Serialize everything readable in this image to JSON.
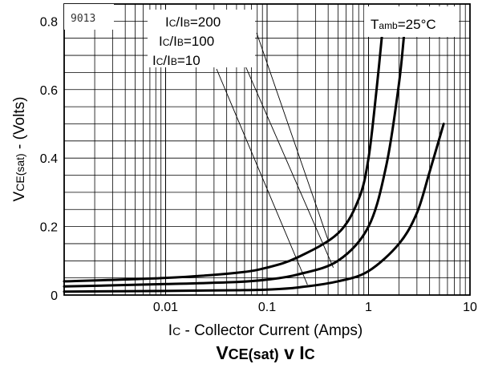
{
  "chart_data": {
    "type": "line",
    "title": "VCE(sat) v IC",
    "xlabel": "IC - Collector Current (Amps)",
    "ylabel": "VCE(sat) - (Volts)",
    "x_scale": "log",
    "xlim": [
      0.001,
      10
    ],
    "ylim": [
      0,
      0.85
    ],
    "x_ticks": [
      "0.01",
      "0.1",
      "1",
      "10"
    ],
    "y_ticks": [
      "0",
      "0.2",
      "0.4",
      "0.6",
      "0.8"
    ],
    "grid": true,
    "device_label": "9013",
    "condition_label": "Tamb=25°C",
    "series": [
      {
        "name": "IC/IB=10",
        "x": [
          0.001,
          0.01,
          0.05,
          0.1,
          0.2,
          0.5,
          1,
          2,
          3,
          4,
          5.5
        ],
        "y": [
          0.01,
          0.012,
          0.014,
          0.016,
          0.022,
          0.04,
          0.07,
          0.15,
          0.24,
          0.36,
          0.5
        ]
      },
      {
        "name": "IC/IB=100",
        "x": [
          0.001,
          0.01,
          0.05,
          0.1,
          0.2,
          0.5,
          1,
          1.5,
          2,
          2.3
        ],
        "y": [
          0.025,
          0.032,
          0.038,
          0.045,
          0.06,
          0.1,
          0.2,
          0.38,
          0.62,
          0.8
        ]
      },
      {
        "name": "IC/IB=200",
        "x": [
          0.001,
          0.01,
          0.05,
          0.1,
          0.2,
          0.5,
          0.8,
          1,
          1.2,
          1.4
        ],
        "y": [
          0.04,
          0.05,
          0.065,
          0.08,
          0.11,
          0.18,
          0.28,
          0.4,
          0.6,
          0.8
        ]
      }
    ]
  }
}
